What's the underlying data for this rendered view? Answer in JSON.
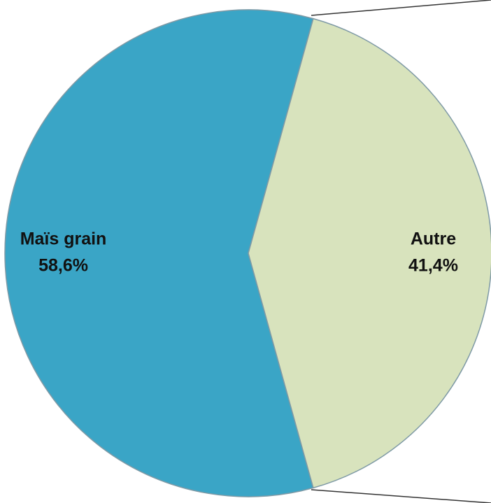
{
  "chart_data": {
    "type": "pie",
    "categories": [
      "Maïs grain",
      "Autre"
    ],
    "values": [
      58.6,
      41.4
    ],
    "value_labels": [
      "58,6%",
      "41,4%"
    ],
    "colors": [
      "#3aa5c6",
      "#d8e3bd"
    ]
  }
}
